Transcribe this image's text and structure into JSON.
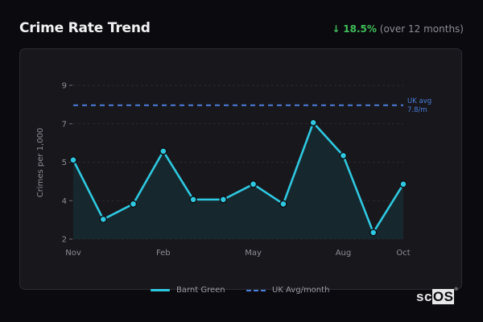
{
  "header": {
    "title": "Crime Rate Trend",
    "change_arrow": "↓",
    "change_pct": "18.5%",
    "change_note": "(over 12 months)"
  },
  "colors": {
    "line": "#2ec8e0",
    "fill": "#16292f",
    "reference": "#4a7fdc",
    "positive_change": "#3fbf5a"
  },
  "legend": {
    "series_label": "Barnt Green",
    "reference_label": "UK Avg/month"
  },
  "reference": {
    "label_line1": "UK avg",
    "label_line2": "7.8/m"
  },
  "logo": {
    "text_sc": "sc",
    "text_os": "OS",
    "mark": "®"
  },
  "chart_data": {
    "type": "area",
    "title": "Crime Rate Trend",
    "xlabel": "",
    "ylabel": "Crimes per 1,000",
    "categories": [
      "Nov",
      "Dec",
      "Jan",
      "Feb",
      "Mar",
      "Apr",
      "May",
      "Jun",
      "Jul",
      "Aug",
      "Sep",
      "Oct"
    ],
    "x_tick_labels": [
      "Nov",
      "Feb",
      "May",
      "Aug",
      "Oct"
    ],
    "y_tick_labels": [
      "2",
      "4",
      "5",
      "7",
      "9"
    ],
    "ylim": [
      2,
      9
    ],
    "grid": true,
    "legend_position": "bottom",
    "series": [
      {
        "name": "Barnt Green",
        "values": [
          5.6,
          2.9,
          3.6,
          6.0,
          3.8,
          3.8,
          4.5,
          3.6,
          7.3,
          5.8,
          2.3,
          4.5
        ]
      },
      {
        "name": "UK Avg/month",
        "values": [
          7.8,
          7.8,
          7.8,
          7.8,
          7.8,
          7.8,
          7.8,
          7.8,
          7.8,
          7.8,
          7.8,
          7.8
        ],
        "style": "dashed"
      }
    ],
    "annotations": [
      "UK avg 7.8/m"
    ],
    "change": {
      "direction": "down",
      "percent": 18.5,
      "period": "12 months"
    }
  }
}
